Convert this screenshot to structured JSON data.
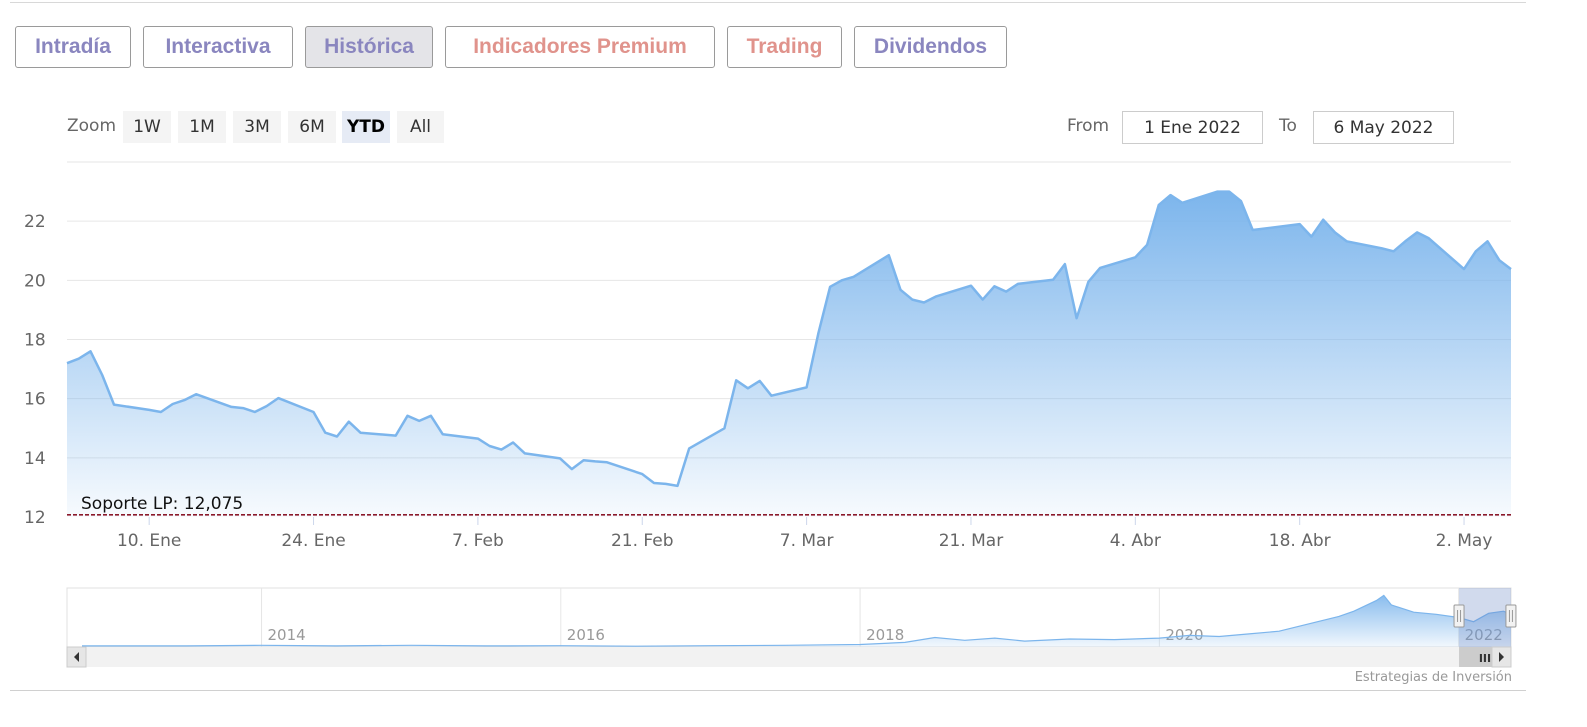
{
  "tabs": [
    {
      "label": "Intradía",
      "color": "#8a86bf",
      "active": false
    },
    {
      "label": "Interactiva",
      "color": "#8a86bf",
      "active": false
    },
    {
      "label": "Histórica",
      "color": "#8a86bf",
      "active": true
    },
    {
      "label": "Indicadores Premium",
      "color": "#e0938c",
      "active": false
    },
    {
      "label": "Trading",
      "color": "#e0938c",
      "active": false
    },
    {
      "label": "Dividendos",
      "color": "#8a86bf",
      "active": false
    }
  ],
  "range_selector": {
    "zoom_label": "Zoom",
    "buttons": [
      "1W",
      "1M",
      "3M",
      "6M",
      "YTD",
      "All"
    ],
    "selected": "YTD",
    "from_label": "From",
    "from_value": "1 Ene 2022",
    "to_label": "To",
    "to_value": "6 May 2022"
  },
  "credit": "Estrategias de Inversión",
  "chart_data": {
    "type": "area",
    "series": [
      {
        "color": "#7cb5ec"
      }
    ],
    "x_ticks": [
      "10. Ene",
      "24. Ene",
      "7. Feb",
      "21. Feb",
      "7. Mar",
      "21. Mar",
      "4. Abr",
      "18. Abr",
      "2. May"
    ],
    "y_ticks": [
      12,
      14,
      16,
      18,
      20,
      22
    ],
    "ylim": [
      12,
      24
    ],
    "xlim": [
      "2022-01-03",
      "2022-05-06"
    ],
    "grid": true,
    "plot_line": {
      "label": "Soporte LP: 12,075",
      "value": 12.075,
      "color": "#8b1a2b",
      "style": "dashed"
    },
    "points": [
      [
        "2022-01-03",
        17.2
      ],
      [
        "2022-01-04",
        17.35
      ],
      [
        "2022-01-05",
        17.6
      ],
      [
        "2022-01-06",
        16.8
      ],
      [
        "2022-01-07",
        15.8
      ],
      [
        "2022-01-10",
        15.62
      ],
      [
        "2022-01-11",
        15.55
      ],
      [
        "2022-01-12",
        15.82
      ],
      [
        "2022-01-13",
        15.95
      ],
      [
        "2022-01-14",
        16.15
      ],
      [
        "2022-01-17",
        15.72
      ],
      [
        "2022-01-18",
        15.68
      ],
      [
        "2022-01-19",
        15.55
      ],
      [
        "2022-01-20",
        15.75
      ],
      [
        "2022-01-21",
        16.02
      ],
      [
        "2022-01-24",
        15.55
      ],
      [
        "2022-01-25",
        14.85
      ],
      [
        "2022-01-26",
        14.72
      ],
      [
        "2022-01-27",
        15.22
      ],
      [
        "2022-01-28",
        14.85
      ],
      [
        "2022-01-31",
        14.75
      ],
      [
        "2022-02-01",
        15.42
      ],
      [
        "2022-02-02",
        15.25
      ],
      [
        "2022-02-03",
        15.42
      ],
      [
        "2022-02-04",
        14.8
      ],
      [
        "2022-02-07",
        14.65
      ],
      [
        "2022-02-08",
        14.4
      ],
      [
        "2022-02-09",
        14.28
      ],
      [
        "2022-02-10",
        14.52
      ],
      [
        "2022-02-11",
        14.15
      ],
      [
        "2022-02-14",
        13.98
      ],
      [
        "2022-02-15",
        13.62
      ],
      [
        "2022-02-16",
        13.92
      ],
      [
        "2022-02-17",
        13.88
      ],
      [
        "2022-02-18",
        13.85
      ],
      [
        "2022-02-21",
        13.45
      ],
      [
        "2022-02-22",
        13.15
      ],
      [
        "2022-02-23",
        13.12
      ],
      [
        "2022-02-24",
        13.05
      ],
      [
        "2022-02-25",
        14.32
      ],
      [
        "2022-02-28",
        15.0
      ],
      [
        "2022-03-01",
        16.62
      ],
      [
        "2022-03-02",
        16.35
      ],
      [
        "2022-03-03",
        16.6
      ],
      [
        "2022-03-04",
        16.1
      ],
      [
        "2022-03-07",
        16.38
      ],
      [
        "2022-03-08",
        18.2
      ],
      [
        "2022-03-09",
        19.78
      ],
      [
        "2022-03-10",
        20.0
      ],
      [
        "2022-03-11",
        20.12
      ],
      [
        "2022-03-14",
        20.85
      ],
      [
        "2022-03-15",
        19.68
      ],
      [
        "2022-03-16",
        19.35
      ],
      [
        "2022-03-17",
        19.25
      ],
      [
        "2022-03-18",
        19.45
      ],
      [
        "2022-03-21",
        19.82
      ],
      [
        "2022-03-22",
        19.35
      ],
      [
        "2022-03-23",
        19.8
      ],
      [
        "2022-03-24",
        19.62
      ],
      [
        "2022-03-25",
        19.88
      ],
      [
        "2022-03-28",
        20.02
      ],
      [
        "2022-03-29",
        20.55
      ],
      [
        "2022-03-30",
        18.72
      ],
      [
        "2022-03-31",
        19.95
      ],
      [
        "2022-04-01",
        20.42
      ],
      [
        "2022-04-04",
        20.78
      ],
      [
        "2022-04-05",
        21.2
      ],
      [
        "2022-04-06",
        22.55
      ],
      [
        "2022-04-07",
        22.88
      ],
      [
        "2022-04-08",
        22.62
      ],
      [
        "2022-04-11",
        23.0
      ],
      [
        "2022-04-12",
        23.0
      ],
      [
        "2022-04-13",
        22.68
      ],
      [
        "2022-04-14",
        21.7
      ],
      [
        "2022-04-18",
        21.9
      ],
      [
        "2022-04-19",
        21.48
      ],
      [
        "2022-04-20",
        22.05
      ],
      [
        "2022-04-21",
        21.62
      ],
      [
        "2022-04-22",
        21.32
      ],
      [
        "2022-04-25",
        21.08
      ],
      [
        "2022-04-26",
        20.98
      ],
      [
        "2022-04-27",
        21.32
      ],
      [
        "2022-04-28",
        21.62
      ],
      [
        "2022-04-29",
        21.42
      ],
      [
        "2022-05-02",
        20.38
      ],
      [
        "2022-05-03",
        20.98
      ],
      [
        "2022-05-04",
        21.32
      ],
      [
        "2022-05-05",
        20.68
      ],
      [
        "2022-05-06",
        20.38
      ]
    ]
  },
  "navigator": {
    "year_labels": [
      "2014",
      "2016",
      "2018",
      "2020",
      "2022"
    ],
    "x_range_years": [
      2012.7,
      2022.35
    ],
    "selected_range": [
      "2022-01-01",
      "2022-05-06"
    ],
    "scrollbar_grip": "III",
    "series": [
      [
        2012.8,
        0.05
      ],
      [
        2013.5,
        0.05
      ],
      [
        2014.0,
        0.08
      ],
      [
        2014.5,
        0.05
      ],
      [
        2015.0,
        0.08
      ],
      [
        2015.5,
        0.05
      ],
      [
        2016.0,
        0.06
      ],
      [
        2016.5,
        0.04
      ],
      [
        2017.0,
        0.06
      ],
      [
        2017.5,
        0.08
      ],
      [
        2018.0,
        0.12
      ],
      [
        2018.3,
        0.22
      ],
      [
        2018.5,
        0.45
      ],
      [
        2018.7,
        0.32
      ],
      [
        2018.9,
        0.42
      ],
      [
        2019.1,
        0.28
      ],
      [
        2019.4,
        0.38
      ],
      [
        2019.7,
        0.35
      ],
      [
        2020.0,
        0.42
      ],
      [
        2020.2,
        0.55
      ],
      [
        2020.4,
        0.5
      ],
      [
        2020.6,
        0.62
      ],
      [
        2020.8,
        0.75
      ],
      [
        2021.0,
        1.1
      ],
      [
        2021.2,
        1.45
      ],
      [
        2021.3,
        1.7
      ],
      [
        2021.45,
        2.2
      ],
      [
        2021.5,
        2.45
      ],
      [
        2021.55,
        2.0
      ],
      [
        2021.7,
        1.65
      ],
      [
        2021.85,
        1.55
      ],
      [
        2022.0,
        1.4
      ],
      [
        2022.1,
        1.2
      ],
      [
        2022.2,
        1.6
      ],
      [
        2022.3,
        1.7
      ],
      [
        2022.35,
        1.55
      ]
    ]
  }
}
